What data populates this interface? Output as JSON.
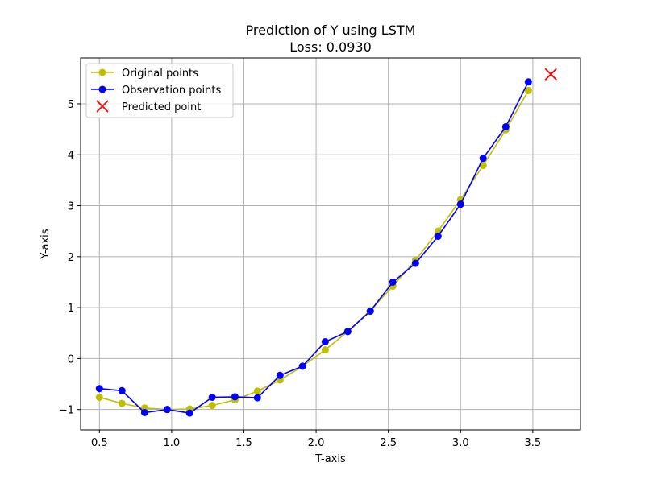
{
  "chart_data": {
    "type": "line",
    "title": "Prediction of Y using LSTM",
    "subtitle": "Loss: 0.0930",
    "xlabel": "T-axis",
    "ylabel": "Y-axis",
    "xlim": [
      0.37,
      3.83
    ],
    "ylim": [
      -1.4,
      5.9
    ],
    "xticks": [
      0.5,
      1.0,
      1.5,
      2.0,
      2.5,
      3.0,
      3.5
    ],
    "yticks": [
      -1,
      0,
      1,
      2,
      3,
      4,
      5
    ],
    "xtick_labels": [
      "0.5",
      "1.0",
      "1.5",
      "2.0",
      "2.5",
      "3.0",
      "3.5"
    ],
    "ytick_labels": [
      "−1",
      "0",
      "1",
      "2",
      "3",
      "4",
      "5"
    ],
    "grid": true,
    "legend_position": "top-left",
    "x": [
      0.5,
      0.656,
      0.813,
      0.969,
      1.125,
      1.281,
      1.438,
      1.594,
      1.75,
      1.906,
      2.063,
      2.219,
      2.375,
      2.531,
      2.688,
      2.844,
      3.0,
      3.156,
      3.313,
      3.469
    ],
    "series": [
      {
        "name": "Original points",
        "color": "#bfbf00",
        "marker": "circle",
        "values": [
          -0.76,
          -0.88,
          -0.97,
          -1.0,
          -0.99,
          -0.92,
          -0.81,
          -0.64,
          -0.42,
          -0.15,
          0.17,
          0.53,
          0.94,
          1.42,
          1.93,
          2.5,
          3.12,
          3.79,
          4.49,
          5.26
        ]
      },
      {
        "name": "Observation points",
        "color": "#0000ff",
        "marker": "circle",
        "values": [
          -0.59,
          -0.63,
          -1.06,
          -1.0,
          -1.07,
          -0.76,
          -0.75,
          -0.77,
          -0.33,
          -0.15,
          0.33,
          0.53,
          0.93,
          1.5,
          1.87,
          2.4,
          3.03,
          3.93,
          4.55,
          5.43
        ]
      },
      {
        "name": "Predicted point",
        "color": "#ff0000",
        "marker": "x",
        "x": [
          3.625
        ],
        "values": [
          5.58
        ]
      }
    ]
  }
}
